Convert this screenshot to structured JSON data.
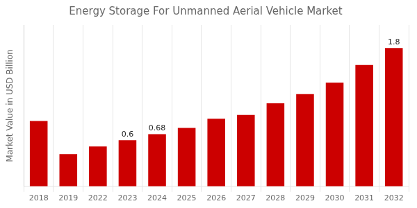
{
  "chart_data": {
    "type": "bar",
    "title": "Energy Storage For Unmanned Aerial Vehicle Market",
    "ylabel": "Market Value in USD Billion",
    "categories": [
      "2018",
      "2019",
      "2022",
      "2023",
      "2024",
      "2025",
      "2026",
      "2027",
      "2028",
      "2029",
      "2030",
      "2031",
      "2032"
    ],
    "values": [
      0.85,
      0.42,
      0.52,
      0.6,
      0.68,
      0.76,
      0.88,
      0.93,
      1.08,
      1.2,
      1.35,
      1.58,
      1.8
    ],
    "value_labels": [
      null,
      null,
      null,
      "0.6",
      "0.68",
      null,
      null,
      null,
      null,
      null,
      null,
      null,
      "1.8"
    ],
    "color": "#cc0000",
    "ylim": [
      0,
      2.1
    ],
    "tick_labels": "x",
    "grid": "x"
  }
}
